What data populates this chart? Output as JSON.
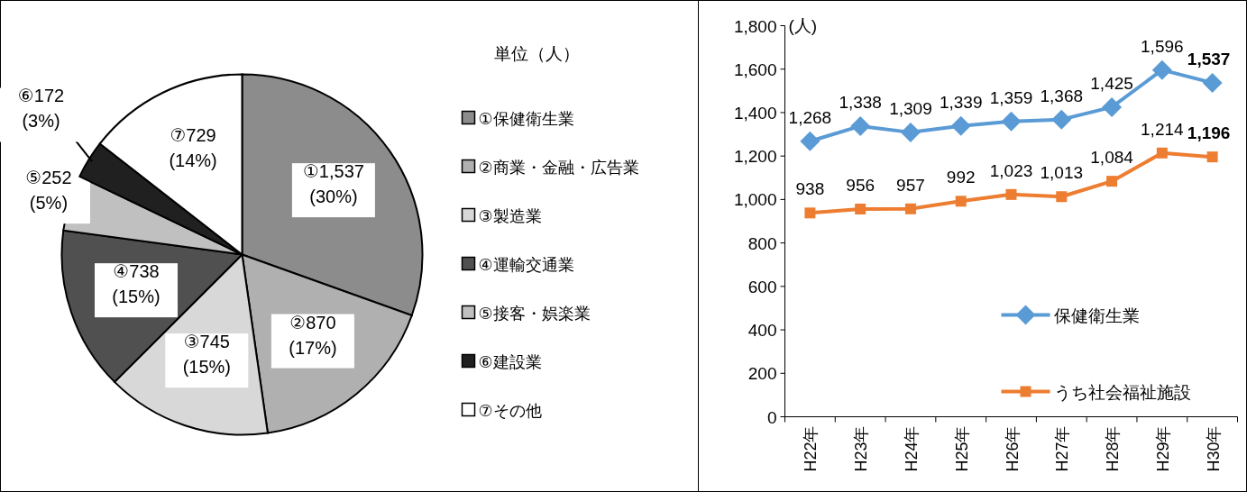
{
  "chart_data": [
    {
      "type": "pie",
      "legend_title": "単位（人）",
      "legend": "right",
      "categories": [
        "①保健衛生業",
        "②商業・金融・広告業",
        "③製造業",
        "④運輸交通業",
        "⑤接客・娯楽業",
        "⑥建設業",
        "⑦その他"
      ],
      "values": [
        1537,
        870,
        745,
        738,
        252,
        172,
        729
      ],
      "value_labels": [
        "①1,537\n(30%)",
        "②870\n(17%)",
        "③745\n(15%)",
        "④738\n(15%)",
        "⑤252\n(5%)",
        "⑥172\n(3%)",
        "⑦729\n(14%)"
      ],
      "colors": [
        "#8c8c8c",
        "#b0b0b0",
        "#d8d8d8",
        "#505050",
        "#c0c0c0",
        "#202020",
        "#ffffff"
      ]
    },
    {
      "type": "line",
      "ylabel": "(人)",
      "ylim": [
        0,
        1800
      ],
      "yticks": [
        0,
        200,
        400,
        600,
        800,
        {
          "value": 1000,
          "label": "1,000"
        },
        {
          "value": 1200,
          "label": "1,200"
        },
        {
          "value": 1400,
          "label": "1,400"
        },
        {
          "value": 1600,
          "label": "1,600"
        },
        {
          "value": 1800,
          "label": "1,800"
        }
      ],
      "grid": false,
      "legend": "bottom right",
      "categories": [
        "H22年",
        "H23年",
        "H24年",
        "H25年",
        "H26年",
        "H27年",
        "H28年",
        "H29年",
        "H30年"
      ],
      "series": [
        {
          "name": "保健衛生業",
          "color": "#5b9bd5",
          "marker": "diamond",
          "values": [
            1268,
            1338,
            1309,
            1339,
            1359,
            1368,
            1425,
            1596,
            1537
          ],
          "value_labels": [
            "1,268",
            "1,338",
            "1,309",
            "1,339",
            "1,359",
            "1,368",
            "1,425",
            "1,596",
            "1,537"
          ]
        },
        {
          "name": "うち社会福祉施設",
          "color": "#ed7d31",
          "marker": "square",
          "values": [
            938,
            956,
            957,
            992,
            1023,
            1013,
            1084,
            1214,
            1196
          ],
          "value_labels": [
            "938",
            "956",
            "957",
            "992",
            "1,023",
            "1,013",
            "1,084",
            "1,214",
            "1,196"
          ]
        }
      ]
    }
  ]
}
